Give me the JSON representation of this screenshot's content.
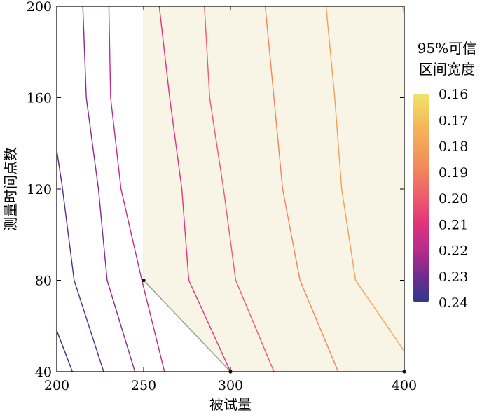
{
  "chart_data": {
    "type": "contour",
    "xlabel": "被试量",
    "ylabel": "测量时间点数",
    "xlim": [
      200,
      400
    ],
    "ylim": [
      40,
      200
    ],
    "x_ticks": [
      200,
      250,
      300,
      400
    ],
    "y_ticks": [
      40,
      80,
      120,
      160,
      200
    ],
    "x_tick_labels": [
      "200",
      "250",
      "300",
      "400"
    ],
    "y_tick_labels": [
      "40",
      "80",
      "120",
      "160",
      "200"
    ],
    "grid": false,
    "colorbar": {
      "title_line1": "95%可信",
      "title_line2": "区间宽度",
      "tick_labels": [
        "0.16",
        "0.17",
        "0.18",
        "0.19",
        "0.20",
        "0.21",
        "0.22",
        "0.23",
        "0.24"
      ],
      "values": [
        0.16,
        0.17,
        0.18,
        0.19,
        0.2,
        0.21,
        0.22,
        0.23,
        0.24
      ],
      "color_top": "#f0e46a",
      "color_bottom": "#2b3a8c"
    },
    "shaded_region": {
      "x_range": [
        250,
        400
      ],
      "y_range": [
        80,
        200
      ],
      "boundary_x_at_y40": 300,
      "color": "#f8f4e6"
    },
    "contours": [
      {
        "level": 0.24,
        "color": "#32317d",
        "points": [
          [
            200,
            58
          ],
          [
            209,
            40
          ]
        ]
      },
      {
        "level": 0.23,
        "color": "#5b2d8c",
        "points": [
          [
            200,
            137
          ],
          [
            203,
            122
          ],
          [
            210,
            80
          ],
          [
            227,
            40
          ]
        ]
      },
      {
        "level": 0.22,
        "color": "#8c2a8e",
        "points": [
          [
            215,
            200
          ],
          [
            217,
            160
          ],
          [
            224,
            120
          ],
          [
            229,
            80
          ],
          [
            245,
            40
          ]
        ]
      },
      {
        "level": 0.215,
        "color": "#c12b8a",
        "points": [
          [
            230,
            200
          ],
          [
            231,
            160
          ],
          [
            237,
            120
          ],
          [
            249,
            80
          ],
          [
            262,
            40
          ]
        ]
      },
      {
        "level": 0.21,
        "color": "#e0357a",
        "points": [
          [
            259,
            200
          ],
          [
            265,
            160
          ],
          [
            272,
            120
          ],
          [
            276,
            80
          ],
          [
            300,
            40
          ]
        ]
      },
      {
        "level": 0.2,
        "color": "#ef5b68",
        "points": [
          [
            285,
            200
          ],
          [
            288,
            160
          ],
          [
            296,
            120
          ],
          [
            303,
            80
          ],
          [
            325,
            40
          ]
        ]
      },
      {
        "level": 0.19,
        "color": "#f2855a",
        "points": [
          [
            320,
            200
          ],
          [
            325,
            160
          ],
          [
            330,
            120
          ],
          [
            340,
            80
          ],
          [
            362,
            40
          ]
        ]
      },
      {
        "level": 0.18,
        "color": "#f4a055",
        "points": [
          [
            355,
            200
          ],
          [
            360,
            160
          ],
          [
            364,
            120
          ],
          [
            372,
            80
          ],
          [
            400,
            49
          ]
        ]
      },
      {
        "level": 0.17,
        "color": "#f3ba5a",
        "points": [
          [
            399,
            200
          ],
          [
            400,
            196
          ]
        ]
      }
    ],
    "annotation_segment": {
      "points": [
        [
          250,
          80
        ],
        [
          300,
          40
        ]
      ],
      "color": "#9a9a9a"
    },
    "markers": [
      [
        250,
        80
      ],
      [
        300,
        40
      ],
      [
        400,
        40
      ]
    ]
  }
}
